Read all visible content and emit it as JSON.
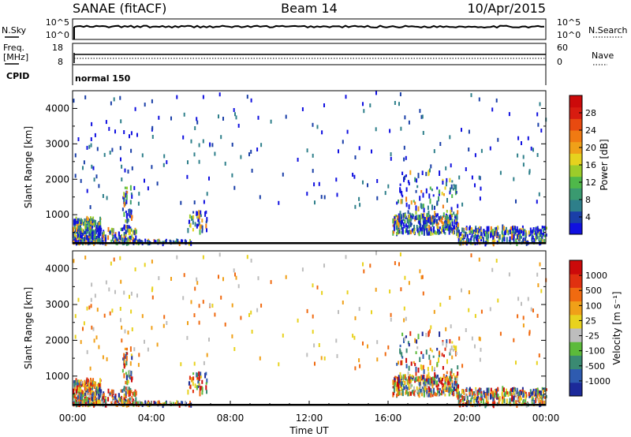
{
  "header": {
    "station": "SANAE (fitACF)",
    "beam": "Beam 14",
    "date": "10/Apr/2015"
  },
  "nsky_panel": {
    "left_label": "N.Sky",
    "right_label": "N.Search",
    "left_ticks": [
      "10^5",
      "10^0"
    ],
    "right_ticks": [
      "10^5",
      "10^0"
    ]
  },
  "freq_panel": {
    "left_label_top": "Freq.",
    "left_label_unit": "[MHz]",
    "right_label": "Nave",
    "left_ticks": [
      "18",
      "8"
    ],
    "right_ticks": [
      "60",
      "0"
    ]
  },
  "cpid_panel": {
    "label": "CPID",
    "mode": "normal 150"
  },
  "power_colorbar": {
    "label": "Power [dB]",
    "ticks": [
      "28",
      "24",
      "20",
      "16",
      "12",
      "8",
      "4"
    ],
    "colors": [
      "#1010e0",
      "#1a3fa8",
      "#2e7f8a",
      "#3a9a70",
      "#4fb84a",
      "#9ccc2a",
      "#e6d21e",
      "#f0a018",
      "#f07a12",
      "#e84a10",
      "#d81c10",
      "#cc0a0a"
    ]
  },
  "velocity_colorbar": {
    "label": "Velocity [m s⁻¹]",
    "ticks": [
      "1000",
      "500",
      "100",
      "25",
      "-25",
      "-100",
      "-500",
      "-1000"
    ],
    "colors": [
      "#1c2a9a",
      "#2e5bb0",
      "#3a8a72",
      "#5cba3a",
      "#bdbdbd",
      "#e8d21e",
      "#f0a018",
      "#f06a10",
      "#e03010",
      "#cc0a0a"
    ]
  },
  "chart_data": [
    {
      "type": "heatmap",
      "title": "Power",
      "ylabel": "Slant Range [km]",
      "xlabel": "",
      "xlim": [
        0,
        24
      ],
      "ylim": [
        180,
        4500
      ],
      "yticks": [
        1000,
        2000,
        3000,
        4000
      ],
      "clim": [
        0,
        30
      ],
      "clusters": [
        {
          "t0": 0.0,
          "t1": 1.4,
          "r0": 180,
          "r1": 900,
          "n": 260
        },
        {
          "t0": 1.3,
          "t1": 3.2,
          "r0": 180,
          "r1": 600,
          "n": 110
        },
        {
          "t0": 2.5,
          "t1": 3.0,
          "r0": 500,
          "r1": 1800,
          "n": 50
        },
        {
          "t0": 5.8,
          "t1": 6.8,
          "r0": 500,
          "r1": 1100,
          "n": 40
        },
        {
          "t0": 3.0,
          "t1": 6.0,
          "r0": 180,
          "r1": 260,
          "n": 60
        },
        {
          "t0": 16.2,
          "t1": 19.6,
          "r0": 450,
          "r1": 1000,
          "n": 320
        },
        {
          "t0": 16.4,
          "t1": 19.5,
          "r0": 1000,
          "r1": 2200,
          "n": 90
        },
        {
          "t0": 19.5,
          "t1": 24.0,
          "r0": 180,
          "r1": 650,
          "n": 300
        },
        {
          "t0": 0.0,
          "t1": 24.0,
          "r0": 1200,
          "r1": 4450,
          "n": 220
        }
      ]
    },
    {
      "type": "heatmap",
      "title": "Velocity",
      "ylabel": "Slant Range [km]",
      "xlabel": "Time UT",
      "xlim": [
        0,
        24
      ],
      "ylim": [
        180,
        4500
      ],
      "xticks": [
        "00:00",
        "04:00",
        "08:00",
        "12:00",
        "16:00",
        "20:00",
        "00:00"
      ],
      "yticks": [
        1000,
        2000,
        3000,
        4000
      ],
      "clim": [
        -1000,
        1000
      ],
      "clusters": [
        {
          "t0": 0.0,
          "t1": 1.4,
          "r0": 180,
          "r1": 900,
          "n": 260
        },
        {
          "t0": 1.3,
          "t1": 3.2,
          "r0": 180,
          "r1": 600,
          "n": 110
        },
        {
          "t0": 2.5,
          "t1": 3.0,
          "r0": 500,
          "r1": 1800,
          "n": 50
        },
        {
          "t0": 5.8,
          "t1": 6.8,
          "r0": 500,
          "r1": 1100,
          "n": 40
        },
        {
          "t0": 3.0,
          "t1": 6.0,
          "r0": 180,
          "r1": 260,
          "n": 60
        },
        {
          "t0": 16.2,
          "t1": 19.6,
          "r0": 450,
          "r1": 1000,
          "n": 320
        },
        {
          "t0": 16.4,
          "t1": 19.5,
          "r0": 1000,
          "r1": 2200,
          "n": 90
        },
        {
          "t0": 19.5,
          "t1": 24.0,
          "r0": 180,
          "r1": 650,
          "n": 300
        },
        {
          "t0": 0.0,
          "t1": 24.0,
          "r0": 1200,
          "r1": 4450,
          "n": 220
        }
      ]
    }
  ]
}
